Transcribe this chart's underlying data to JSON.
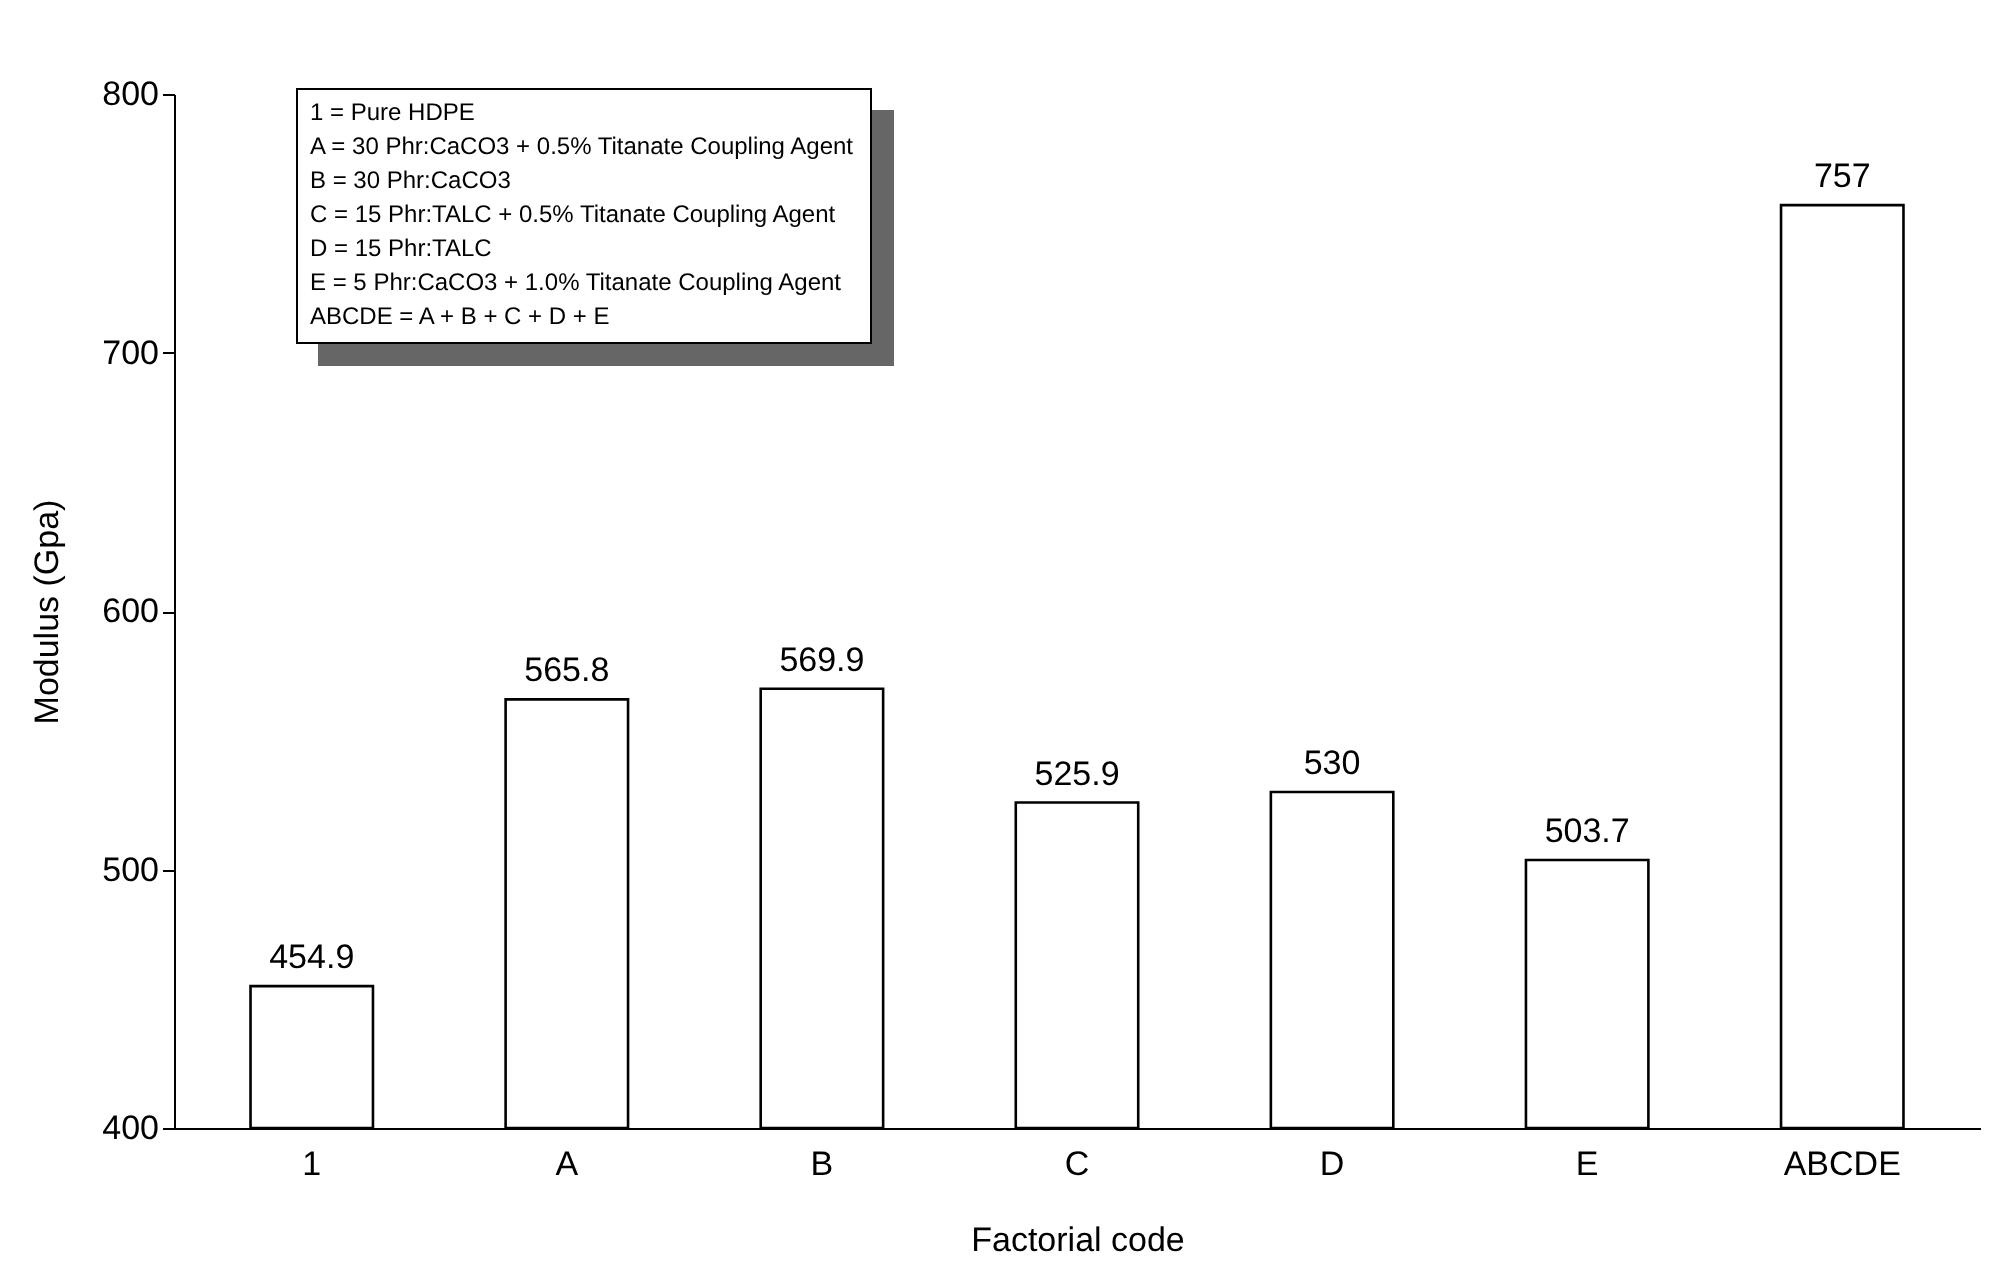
{
  "chart_data": {
    "type": "bar",
    "xlabel": "Factorial code",
    "ylabel": "Modulus (Gpa)",
    "categories": [
      "1",
      "A",
      "B",
      "C",
      "D",
      "E",
      "ABCDE"
    ],
    "values": [
      454.9,
      565.8,
      569.9,
      525.9,
      530,
      503.7,
      757
    ],
    "color": "#ffffff",
    "ylim": [
      400,
      800
    ],
    "yticks": [
      400,
      500,
      600,
      700,
      800
    ],
    "data_labels": true,
    "grid": false,
    "annotations": [
      "1 =  Pure HDPE",
      "A = 30 Phr:CaCO3 + 0.5% Titanate Coupling Agent",
      "B = 30 Phr:CaCO3",
      "C = 15 Phr:TALC + 0.5% Titanate Coupling Agent",
      "D = 15 Phr:TALC",
      "E = 5 Phr:CaCO3 + 1.0% Titanate Coupling Agent",
      "ABCDE = A + B + C + D + E"
    ]
  }
}
